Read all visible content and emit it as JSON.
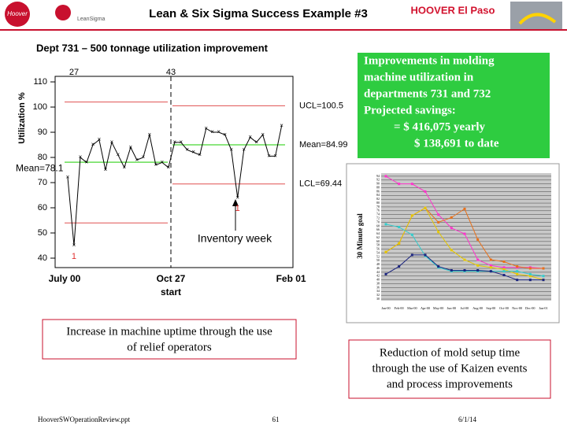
{
  "header": {
    "title": "Lean & Six Sigma Success Example #3",
    "brand": "HOOVER El Paso",
    "logo_left": "Hoover",
    "logo_second": "LeanSigma"
  },
  "chart_data": [
    {
      "type": "control",
      "title": "Dept 731 – 500 tonnage utilization improvement",
      "y_label": "Utilization %",
      "x": [
        1,
        2,
        3,
        4,
        5,
        6,
        7,
        8,
        9,
        10,
        11,
        12,
        13,
        14,
        15,
        16,
        17,
        18,
        19,
        20,
        21,
        22,
        23,
        24,
        25,
        26,
        27,
        28,
        29,
        30,
        31,
        32,
        33,
        34,
        35
      ],
      "values": [
        72,
        45,
        80,
        78,
        85,
        87,
        75,
        86,
        81,
        76,
        84,
        79,
        80,
        89,
        77,
        78,
        76,
        86,
        86,
        83,
        82,
        81,
        91.5,
        90,
        90,
        89,
        83,
        64,
        83,
        88,
        86,
        89,
        80.5,
        80.5,
        92.5
      ],
      "color": "#000000",
      "xlim": [
        -1,
        36.8
      ],
      "ylim": [
        36.25,
        112.2
      ],
      "xticks": [
        {
          "value": 0.5,
          "label": "July 00"
        },
        {
          "value": 17.4,
          "label": "Oct 27"
        },
        {
          "value": 36.5,
          "label": "Feb 01"
        }
      ],
      "split_label": "start",
      "yticks": [
        40,
        50,
        60,
        70,
        80,
        90,
        100,
        110
      ],
      "top_labels": [
        "27",
        "43"
      ],
      "limits": [
        {
          "ucl": 102,
          "mean": 78.1,
          "lcl": 54,
          "mean_label": "Mean=78.1"
        },
        {
          "ucl": 100.5,
          "mean": 84.99,
          "lcl": 69.44,
          "ucl_label": "UCL=100.5",
          "mean_label": "Mean=84.99",
          "lcl_label": "LCL=69.44"
        }
      ],
      "flag_labels": [
        "1",
        "1"
      ],
      "annotation": "Inventory week"
    },
    {
      "type": "line",
      "y_label": "30 Minute goal",
      "categories": [
        "Jan-00",
        "Feb-00",
        "Mar-00",
        "Apr-00",
        "May-00",
        "Jun-00",
        "Jul-00",
        "Aug-00",
        "Sep-00",
        "Oct-00",
        "Nov-00",
        "Dec-00",
        "Jan-01"
      ],
      "ylim": [
        29.2,
        95.6
      ],
      "yticks": [
        30,
        32,
        34,
        36,
        38,
        40,
        42,
        44,
        46,
        48,
        50,
        52,
        54,
        56,
        58,
        60,
        62,
        64,
        66,
        68,
        70,
        72,
        74,
        76,
        78,
        80,
        82,
        84,
        86,
        88,
        90,
        92,
        94
      ],
      "series": [
        {
          "color": "#ff33cc",
          "values": [
            94,
            90,
            90,
            86,
            74,
            67,
            64,
            50.5,
            47.5,
            46.5,
            46.5,
            46.5,
            46
          ]
        },
        {
          "color": "#e8701a",
          "values": [
            54.5,
            59,
            73.5,
            77.5,
            70,
            72.5,
            77,
            61,
            50.5,
            49.5,
            47,
            46,
            46
          ]
        },
        {
          "color": "#e6c800",
          "values": [
            54.5,
            59,
            73.5,
            77.5,
            65,
            55.5,
            50.5,
            47.5,
            46.5,
            45.5,
            43,
            42,
            40
          ]
        },
        {
          "color": "#33cccc",
          "values": [
            69,
            67.5,
            63.5,
            52.5,
            46.5,
            44.5,
            44.5,
            44.5,
            44.5,
            44.5,
            44.5,
            43,
            42
          ]
        },
        {
          "color": "#1a237e",
          "values": [
            43,
            47,
            53,
            53,
            47,
            45,
            45,
            45,
            44.5,
            42.5,
            40,
            40,
            40
          ]
        }
      ]
    }
  ],
  "green_box": [
    "Improvements in molding",
    "machine utilization in",
    "departments 731 and 732",
    "Projected savings:",
    "= $ 416,075 yearly",
    "$ 138,691 to date"
  ],
  "box_left": [
    "Increase in machine uptime through the use",
    "of relief operators"
  ],
  "box_right": [
    "Reduction of mold setup time",
    "through the use of Kaizen events",
    "and process improvements"
  ],
  "footer": {
    "file": "HooverSWOperationReview.ppt",
    "page": "61",
    "date": "6/1/14"
  }
}
